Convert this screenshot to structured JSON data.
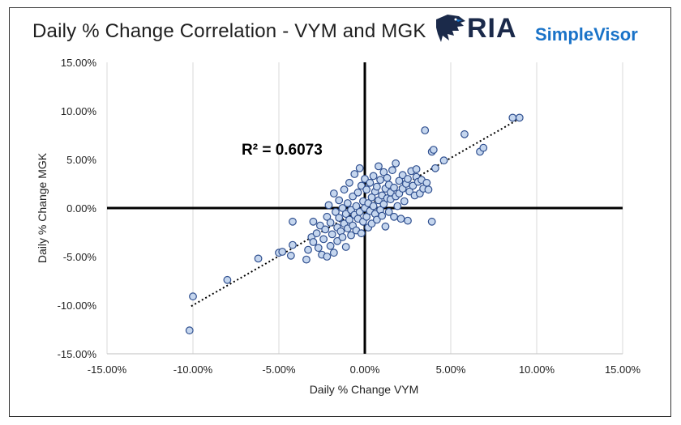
{
  "title": "Daily % Change Correlation - VYM and MGK",
  "logo": {
    "brand": "RIA",
    "product": "SimpleVisor"
  },
  "colors": {
    "marker_fill": "#c5d6ee",
    "marker_stroke": "#2f4f8f",
    "axis": "#000000",
    "grid": "#d9d9d9",
    "brand_navy": "#1b2a4a",
    "brand_blue": "#1a73c8"
  },
  "chart_data": {
    "type": "scatter",
    "title": "Daily % Change Correlation - VYM and MGK",
    "xlabel": "Daily % Change VYM",
    "ylabel": "Daily % Change MGK",
    "xlim": [
      -15,
      15
    ],
    "ylim": [
      -15,
      15
    ],
    "x_ticks": [
      "-15.00%",
      "-10.00%",
      "-5.00%",
      "0.00%",
      "5.00%",
      "10.00%",
      "15.00%"
    ],
    "y_ticks": [
      "15.00%",
      "10.00%",
      "5.00%",
      "0.00%",
      "-5.00%",
      "-10.00%",
      "-15.00%"
    ],
    "grid": "vertical",
    "annotation": "R² = 0.6073",
    "trendline": {
      "style": "dotted",
      "from": [
        -10.1,
        -10.1
      ],
      "to": [
        9.0,
        9.2
      ]
    },
    "series": [
      {
        "values": [
          [
            -10.2,
            -12.6
          ],
          [
            -10.0,
            -9.1
          ],
          [
            -8.0,
            -7.4
          ],
          [
            -6.2,
            -5.2
          ],
          [
            -5.0,
            -4.6
          ],
          [
            -4.8,
            -4.5
          ],
          [
            -4.3,
            -4.9
          ],
          [
            -4.2,
            -3.8
          ],
          [
            -4.2,
            -1.4
          ],
          [
            -3.4,
            -5.3
          ],
          [
            -3.3,
            -4.3
          ],
          [
            -3.1,
            -3.0
          ],
          [
            -3.0,
            -3.5
          ],
          [
            -3.0,
            -1.4
          ],
          [
            -2.8,
            -2.6
          ],
          [
            -2.7,
            -4.1
          ],
          [
            -2.6,
            -1.8
          ],
          [
            -2.5,
            -4.8
          ],
          [
            -2.4,
            -3.2
          ],
          [
            -2.3,
            -2.2
          ],
          [
            -2.2,
            -5.0
          ],
          [
            -2.2,
            -0.9
          ],
          [
            -2.1,
            0.3
          ],
          [
            -2.0,
            -3.9
          ],
          [
            -2.0,
            -1.5
          ],
          [
            -1.9,
            -2.7
          ],
          [
            -1.8,
            -4.6
          ],
          [
            -1.8,
            1.5
          ],
          [
            -1.7,
            -0.4
          ],
          [
            -1.6,
            -2.0
          ],
          [
            -1.6,
            -3.4
          ],
          [
            -1.5,
            -1.0
          ],
          [
            -1.5,
            0.8
          ],
          [
            -1.4,
            -2.4
          ],
          [
            -1.3,
            -3.0
          ],
          [
            -1.3,
            0.0
          ],
          [
            -1.2,
            -1.6
          ],
          [
            -1.2,
            1.9
          ],
          [
            -1.1,
            -0.6
          ],
          [
            -1.1,
            -4.0
          ],
          [
            -1.0,
            -2.1
          ],
          [
            -1.0,
            0.5
          ],
          [
            -0.9,
            -1.2
          ],
          [
            -0.9,
            2.6
          ],
          [
            -0.8,
            -2.8
          ],
          [
            -0.8,
            -0.2
          ],
          [
            -0.7,
            1.2
          ],
          [
            -0.7,
            -1.8
          ],
          [
            -0.6,
            -0.7
          ],
          [
            -0.6,
            3.5
          ],
          [
            -0.5,
            -2.3
          ],
          [
            -0.5,
            0.2
          ],
          [
            -0.4,
            1.6
          ],
          [
            -0.4,
            -1.1
          ],
          [
            -0.3,
            4.1
          ],
          [
            -0.3,
            -0.4
          ],
          [
            -0.2,
            -2.6
          ],
          [
            -0.2,
            2.3
          ],
          [
            -0.1,
            0.7
          ],
          [
            -0.1,
            -1.4
          ],
          [
            0.0,
            0.0
          ],
          [
            0.0,
            3.0
          ],
          [
            0.1,
            -0.9
          ],
          [
            0.1,
            1.9
          ],
          [
            0.2,
            -2.0
          ],
          [
            0.2,
            0.5
          ],
          [
            0.3,
            2.6
          ],
          [
            0.3,
            -0.3
          ],
          [
            0.4,
            1.1
          ],
          [
            0.4,
            -1.6
          ],
          [
            0.5,
            3.3
          ],
          [
            0.5,
            0.2
          ],
          [
            0.6,
            -0.6
          ],
          [
            0.6,
            1.7
          ],
          [
            0.7,
            2.2
          ],
          [
            0.7,
            -1.2
          ],
          [
            0.8,
            0.8
          ],
          [
            0.8,
            4.3
          ],
          [
            0.9,
            -0.2
          ],
          [
            0.9,
            2.9
          ],
          [
            1.0,
            1.3
          ],
          [
            1.0,
            -0.8
          ],
          [
            1.1,
            3.7
          ],
          [
            1.1,
            0.4
          ],
          [
            1.2,
            2.0
          ],
          [
            1.2,
            -1.9
          ],
          [
            1.3,
            1.0
          ],
          [
            1.3,
            3.1
          ],
          [
            1.4,
            -0.4
          ],
          [
            1.4,
            2.4
          ],
          [
            1.5,
            0.9
          ],
          [
            1.5,
            1.6
          ],
          [
            1.6,
            3.9
          ],
          [
            1.7,
            -0.9
          ],
          [
            1.7,
            2.1
          ],
          [
            1.8,
            1.2
          ],
          [
            1.8,
            4.6
          ],
          [
            1.9,
            0.2
          ],
          [
            2.0,
            2.8
          ],
          [
            2.0,
            1.5
          ],
          [
            2.1,
            -1.1
          ],
          [
            2.2,
            3.4
          ],
          [
            2.2,
            2.0
          ],
          [
            2.3,
            0.7
          ],
          [
            2.4,
            2.5
          ],
          [
            2.5,
            -1.3
          ],
          [
            2.5,
            3.0
          ],
          [
            2.6,
            1.7
          ],
          [
            2.7,
            3.8
          ],
          [
            2.8,
            2.3
          ],
          [
            2.9,
            1.3
          ],
          [
            3.0,
            3.2
          ],
          [
            3.0,
            4.0
          ],
          [
            3.1,
            2.7
          ],
          [
            3.2,
            1.5
          ],
          [
            3.3,
            2.9
          ],
          [
            3.4,
            2.0
          ],
          [
            3.5,
            8.0
          ],
          [
            3.6,
            2.6
          ],
          [
            3.7,
            1.9
          ],
          [
            3.9,
            5.8
          ],
          [
            3.9,
            -1.4
          ],
          [
            4.0,
            6.0
          ],
          [
            4.1,
            4.1
          ],
          [
            4.6,
            4.9
          ],
          [
            5.8,
            7.6
          ],
          [
            6.7,
            5.8
          ],
          [
            6.9,
            6.2
          ],
          [
            8.6,
            9.3
          ],
          [
            9.0,
            9.3
          ]
        ]
      }
    ]
  }
}
